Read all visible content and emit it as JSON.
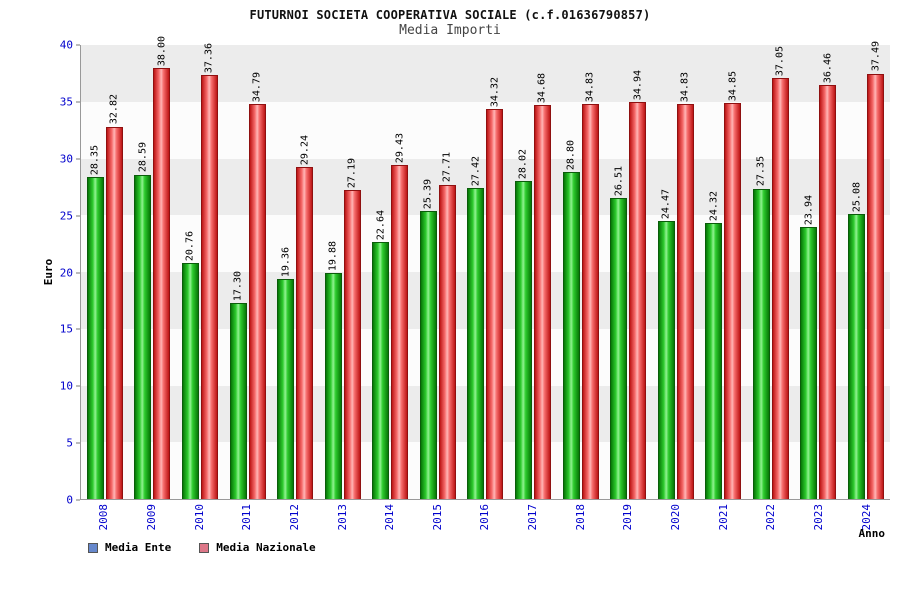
{
  "chart_data": {
    "type": "bar",
    "title": "FUTURNOI SOCIETA COOPERATIVA SOCIALE (c.f.01636790857)",
    "subtitle": "Media Importi",
    "xlabel": "Anno",
    "ylabel": "Euro",
    "ylim": [
      0,
      40
    ],
    "ytick_step": 5,
    "grid": "horizontal-bands",
    "legend_position": "bottom-left",
    "value_label_decimals": 2,
    "categories": [
      "2008",
      "2009",
      "2010",
      "2011",
      "2012",
      "2013",
      "2014",
      "2015",
      "2016",
      "2017",
      "2018",
      "2019",
      "2020",
      "2021",
      "2022",
      "2023",
      "2024"
    ],
    "series": [
      {
        "name": "Media Ente",
        "bar_color": "#22cc22",
        "legend_color": "#6688cc",
        "values": [
          28.35,
          28.59,
          20.76,
          17.3,
          19.36,
          19.88,
          22.64,
          25.39,
          27.42,
          28.02,
          28.8,
          26.51,
          24.47,
          24.32,
          27.35,
          23.94,
          25.08
        ]
      },
      {
        "name": "Media Nazionale",
        "bar_color": "#ff6666",
        "legend_color": "#dd7788",
        "values": [
          32.82,
          38.0,
          37.36,
          34.79,
          29.24,
          27.19,
          29.43,
          27.71,
          34.32,
          34.68,
          34.83,
          34.94,
          34.83,
          34.85,
          37.05,
          36.46,
          37.49
        ]
      }
    ],
    "colors": {
      "axis_text": "#0000cc",
      "band_gray": "#ececec",
      "band_white": "#fcfcfc"
    }
  }
}
